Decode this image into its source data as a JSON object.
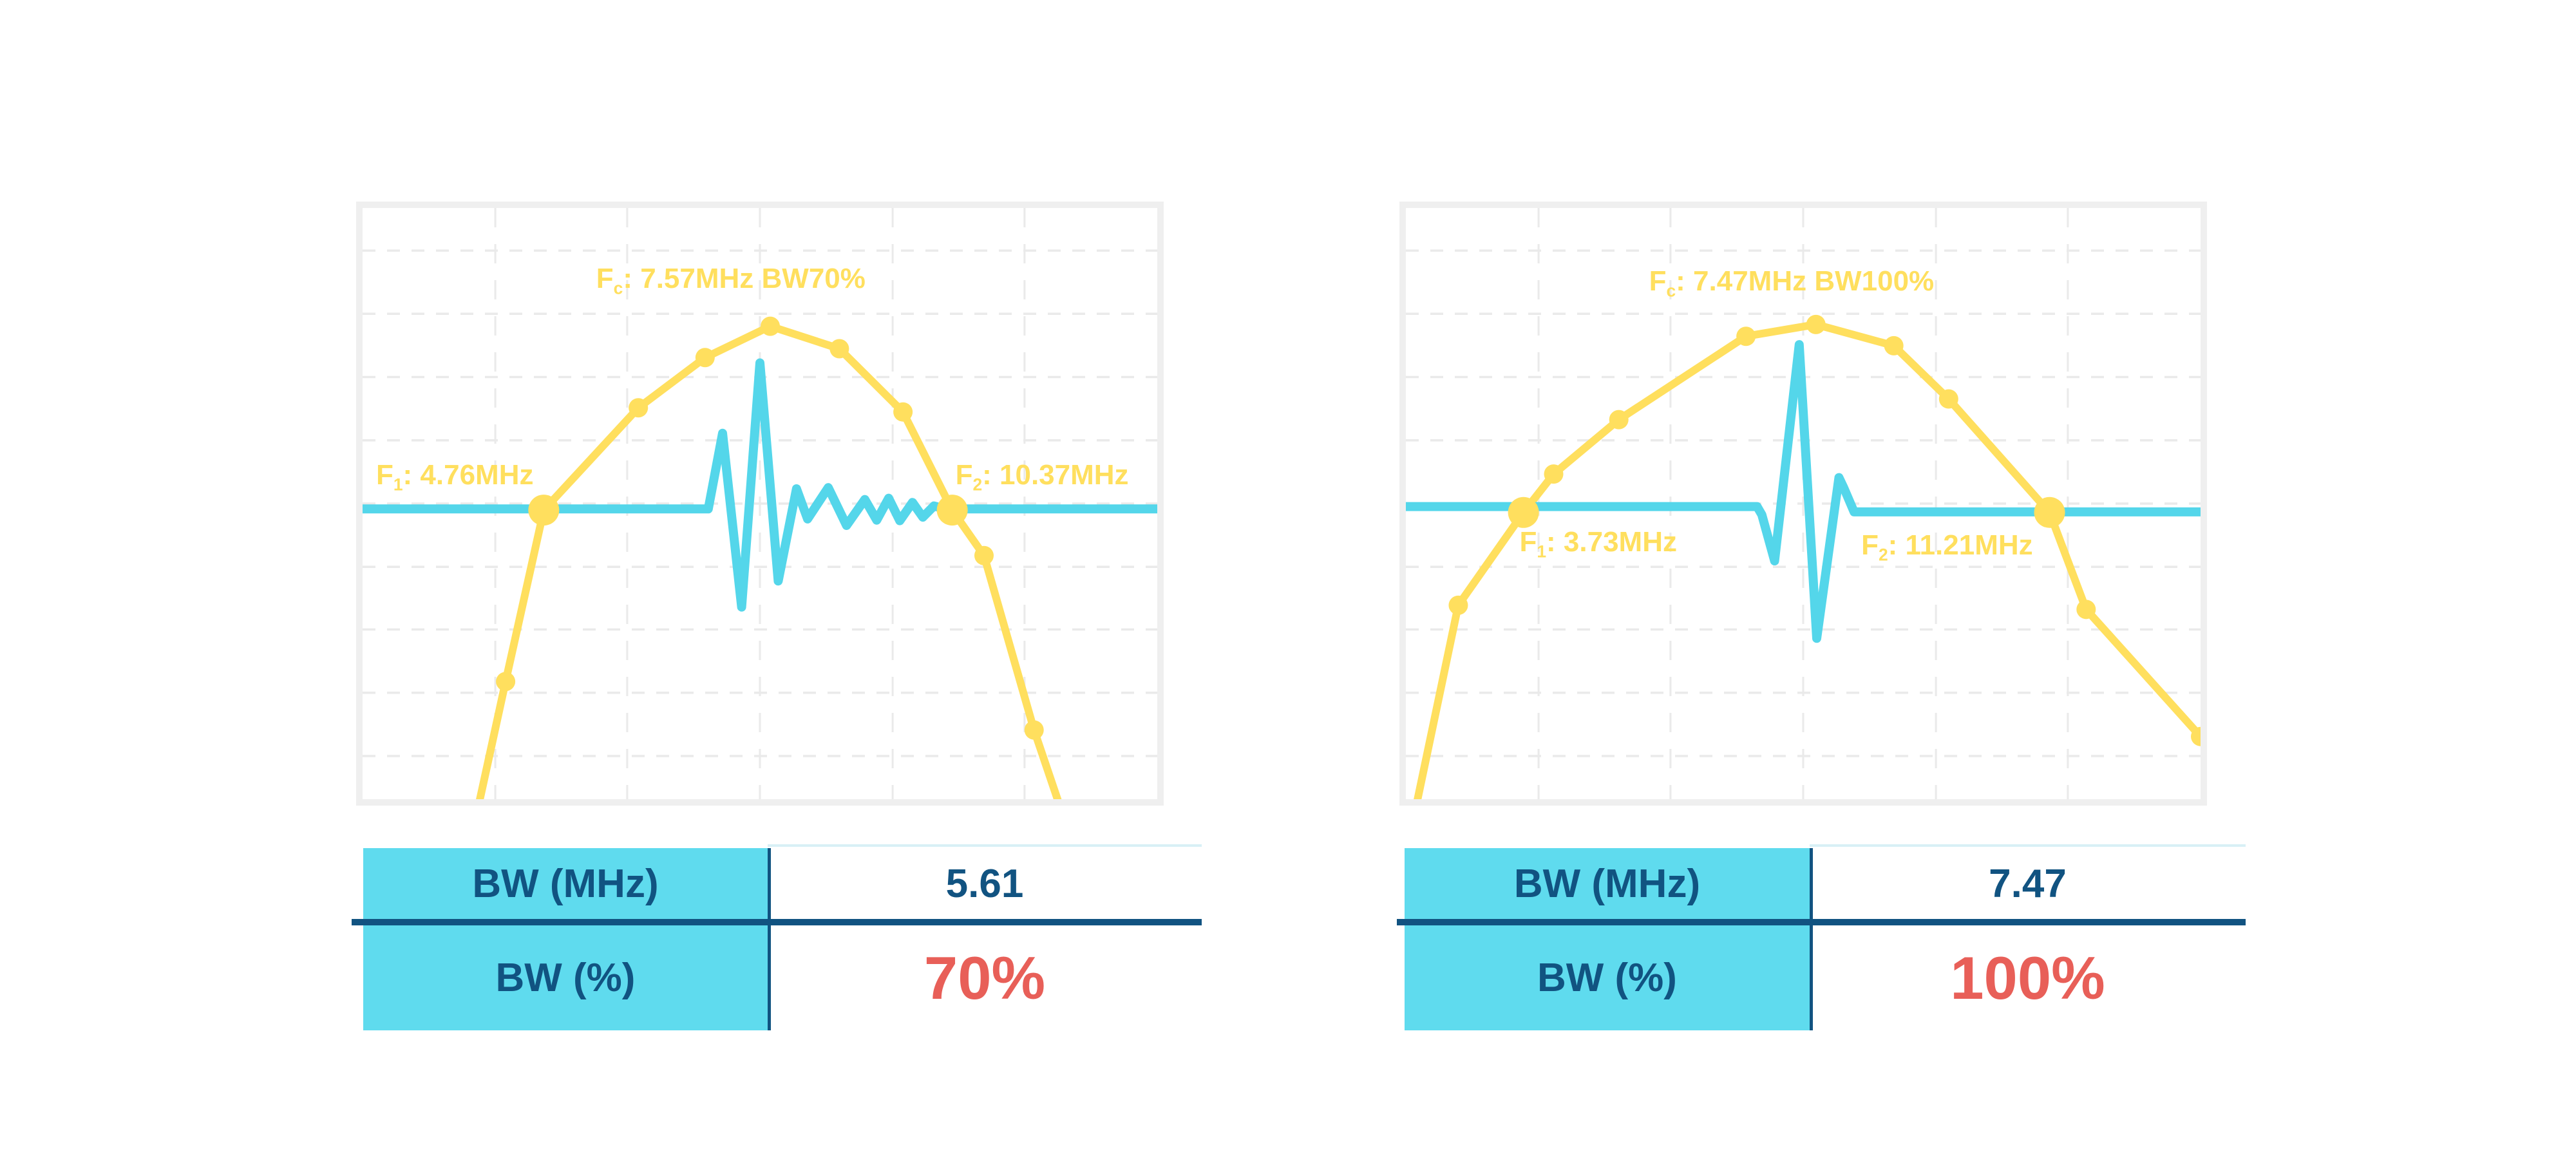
{
  "colors": {
    "yellow": "#FFDF5E",
    "cyan": "#54D6EA",
    "table_cyan": "#5FDBEE",
    "navy": "#115381",
    "red": "#E85F58",
    "grid": "#EAEAEA",
    "frame": "#EFEFEF",
    "light_rule": "#D8F0F6"
  },
  "chart_data": [
    {
      "name": "pulse-and-spectrum-bw70",
      "type": "line",
      "fc_mhz": 7.57,
      "f1_mhz": 4.76,
      "f2_mhz": 10.37,
      "bw_mhz": 5.61,
      "bw_percent": 70,
      "axis_ticks_visible": false,
      "grid": {
        "v": [
          0.167,
          0.333,
          0.5,
          0.667,
          0.833
        ],
        "h": [
          0.072,
          0.179,
          0.286,
          0.393,
          0.5,
          0.607,
          0.713,
          0.82,
          0.927
        ]
      },
      "annotations": {
        "fc": {
          "prefix": "F",
          "sub": "c",
          "text": ": 7.57MHz BW70%",
          "x": 0.294,
          "y": 0.123
        },
        "f1": {
          "prefix": "F",
          "sub": "1",
          "text": ": 4.76MHz",
          "x": 0.017,
          "y": 0.455
        },
        "f2": {
          "prefix": "F",
          "sub": "2",
          "text": ": 10.37MHz",
          "x": 0.746,
          "y": 0.455
        }
      },
      "series": [
        {
          "name": "frequency-spectrum",
          "color_key": "yellow",
          "points": [
            [
              0.146,
              1.01
            ],
            [
              0.18,
              0.801
            ],
            [
              0.228,
              0.511
            ],
            [
              0.347,
              0.338
            ],
            [
              0.431,
              0.253
            ],
            [
              0.513,
              0.2
            ],
            [
              0.6,
              0.238
            ],
            [
              0.68,
              0.345
            ],
            [
              0.742,
              0.511
            ],
            [
              0.782,
              0.588
            ],
            [
              0.845,
              0.883
            ],
            [
              0.877,
              1.01
            ]
          ],
          "small_markers": [
            1,
            3,
            4,
            5,
            6,
            7,
            9,
            10
          ],
          "big_markers": [
            2,
            8
          ]
        },
        {
          "name": "rf-pulse-waveform",
          "color_key": "cyan",
          "points": [
            [
              0,
              0.509
            ],
            [
              0.435,
              0.509
            ],
            [
              0.453,
              0.381
            ],
            [
              0.477,
              0.675
            ],
            [
              0.5,
              0.262
            ],
            [
              0.523,
              0.631
            ],
            [
              0.546,
              0.475
            ],
            [
              0.56,
              0.526
            ],
            [
              0.586,
              0.473
            ],
            [
              0.609,
              0.537
            ],
            [
              0.632,
              0.493
            ],
            [
              0.647,
              0.528
            ],
            [
              0.662,
              0.491
            ],
            [
              0.676,
              0.529
            ],
            [
              0.692,
              0.498
            ],
            [
              0.705,
              0.523
            ],
            [
              0.719,
              0.504
            ],
            [
              0.733,
              0.509
            ],
            [
              1,
              0.509
            ]
          ]
        }
      ],
      "table": {
        "rows": [
          {
            "label": "BW (MHz)",
            "value": "5.61",
            "emphasis": false
          },
          {
            "label": "BW (%)",
            "value": "70%",
            "emphasis": true
          }
        ]
      }
    },
    {
      "name": "pulse-and-spectrum-bw100",
      "type": "line",
      "fc_mhz": 7.47,
      "f1_mhz": 3.73,
      "f2_mhz": 11.21,
      "bw_mhz": 7.47,
      "bw_percent": 100,
      "axis_ticks_visible": false,
      "grid": {
        "v": [
          0.167,
          0.333,
          0.5,
          0.667,
          0.833
        ],
        "h": [
          0.072,
          0.179,
          0.286,
          0.393,
          0.5,
          0.607,
          0.713,
          0.82,
          0.927
        ]
      },
      "annotations": {
        "fc": {
          "prefix": "F",
          "sub": "c",
          "text": ": 7.47MHz BW100%",
          "x": 0.306,
          "y": 0.127
        },
        "f1": {
          "prefix": "F",
          "sub": "1",
          "text": ": 3.73MHz",
          "x": 0.143,
          "y": 0.569
        },
        "f2": {
          "prefix": "F",
          "sub": "2",
          "text": ": 11.21MHz",
          "x": 0.573,
          "y": 0.574
        }
      },
      "series": [
        {
          "name": "frequency-spectrum",
          "color_key": "yellow",
          "points": [
            [
              0.014,
              1.005
            ],
            [
              0.066,
              0.672
            ],
            [
              0.148,
              0.515
            ],
            [
              0.186,
              0.45
            ],
            [
              0.268,
              0.358
            ],
            [
              0.428,
              0.217
            ],
            [
              0.516,
              0.197
            ],
            [
              0.614,
              0.233
            ],
            [
              0.683,
              0.323
            ],
            [
              0.81,
              0.515
            ],
            [
              0.856,
              0.679
            ],
            [
              1.0,
              0.894
            ]
          ],
          "small_markers": [
            1,
            3,
            4,
            5,
            6,
            7,
            8,
            10,
            11
          ],
          "big_markers": [
            2,
            9
          ]
        },
        {
          "name": "rf-pulse-waveform",
          "color_key": "cyan",
          "points": [
            [
              0,
              0.505
            ],
            [
              0.442,
              0.505
            ],
            [
              0.448,
              0.519
            ],
            [
              0.464,
              0.597
            ],
            [
              0.495,
              0.231
            ],
            [
              0.517,
              0.728
            ],
            [
              0.545,
              0.456
            ],
            [
              0.551,
              0.473
            ],
            [
              0.564,
              0.514
            ],
            [
              1,
              0.514
            ]
          ]
        }
      ],
      "table": {
        "rows": [
          {
            "label": "BW (MHz)",
            "value": "7.47",
            "emphasis": false
          },
          {
            "label": "BW (%)",
            "value": "100%",
            "emphasis": true
          }
        ]
      }
    }
  ]
}
